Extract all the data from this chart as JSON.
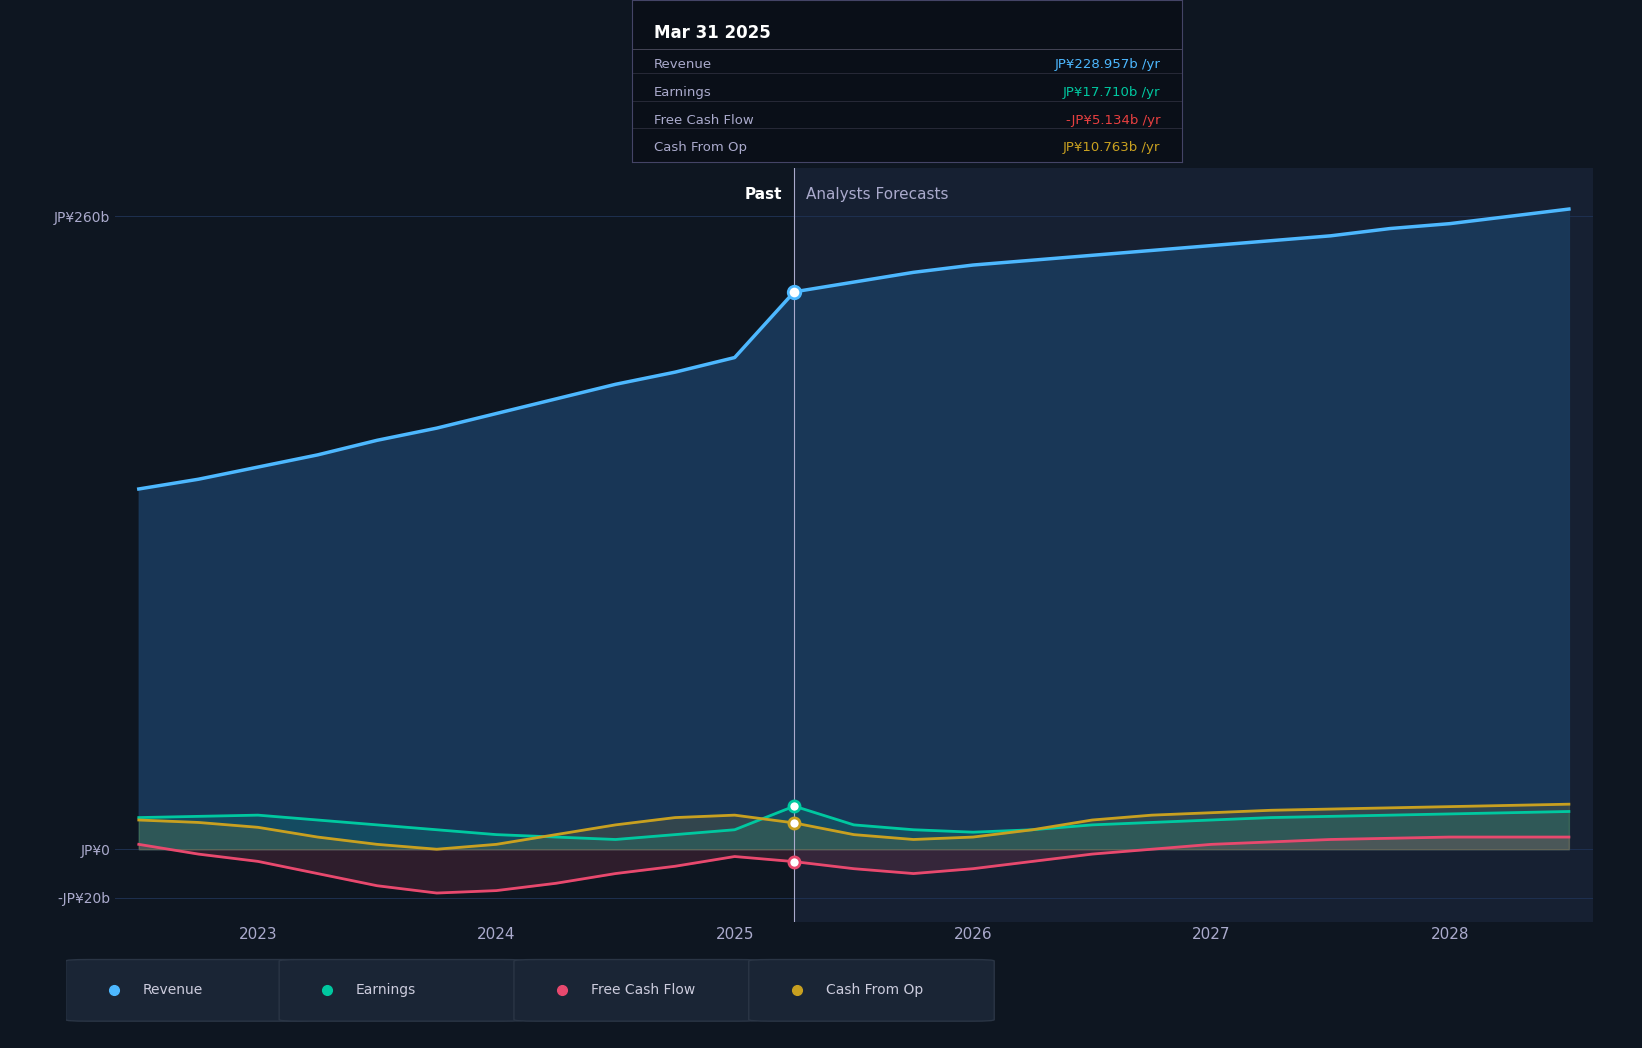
{
  "bg_color": "#0e1621",
  "plot_bg_color": "#162032",
  "left_panel_color": "#0e1621",
  "grid_color": "#1e3050",
  "divider_x": 2025.25,
  "xlim": [
    2022.4,
    2028.6
  ],
  "ylim": [
    -30,
    280
  ],
  "yticks": [
    -20,
    0,
    260
  ],
  "ytick_labels": [
    "-JP¥20b",
    "JP¥0",
    "JP¥260b"
  ],
  "xticks": [
    2023,
    2024,
    2025,
    2026,
    2027,
    2028
  ],
  "past_label": "Past",
  "forecast_label": "Analysts Forecasts",
  "revenue_color": "#4db8ff",
  "revenue_fill": "#1a3a5c",
  "earnings_color": "#00c8a0",
  "fcf_color": "#e8496e",
  "cashop_color": "#c8a020",
  "tooltip_bg": "#0a0f18",
  "tooltip_border": "#333344",
  "revenue_data_x": [
    2022.5,
    2022.75,
    2023.0,
    2023.25,
    2023.5,
    2023.75,
    2024.0,
    2024.25,
    2024.5,
    2024.75,
    2025.0,
    2025.25,
    2025.5,
    2025.75,
    2026.0,
    2026.25,
    2026.5,
    2026.75,
    2027.0,
    2027.25,
    2027.5,
    2027.75,
    2028.0,
    2028.25,
    2028.5
  ],
  "revenue_data_y": [
    148,
    152,
    157,
    162,
    168,
    173,
    179,
    185,
    191,
    196,
    202,
    229,
    233,
    237,
    240,
    242,
    244,
    246,
    248,
    250,
    252,
    255,
    257,
    260,
    263
  ],
  "earnings_data_x": [
    2022.5,
    2022.75,
    2023.0,
    2023.25,
    2023.5,
    2023.75,
    2024.0,
    2024.25,
    2024.5,
    2024.75,
    2025.0,
    2025.25,
    2025.5,
    2025.75,
    2026.0,
    2026.25,
    2026.5,
    2026.75,
    2027.0,
    2027.25,
    2027.5,
    2027.75,
    2028.0,
    2028.25,
    2028.5
  ],
  "earnings_data_y": [
    13,
    13.5,
    14,
    12,
    10,
    8,
    6,
    5,
    4,
    6,
    8,
    17.7,
    10,
    8,
    7,
    8,
    10,
    11,
    12,
    13,
    13.5,
    14,
    14.5,
    15,
    15.5
  ],
  "fcf_data_x": [
    2022.5,
    2022.75,
    2023.0,
    2023.25,
    2023.5,
    2023.75,
    2024.0,
    2024.25,
    2024.5,
    2024.75,
    2025.0,
    2025.25,
    2025.5,
    2025.75,
    2026.0,
    2026.25,
    2026.5,
    2026.75,
    2027.0,
    2027.25,
    2027.5,
    2027.75,
    2028.0,
    2028.25,
    2028.5
  ],
  "fcf_data_y": [
    2,
    -2,
    -5,
    -10,
    -15,
    -18,
    -17,
    -14,
    -10,
    -7,
    -3,
    -5.1,
    -8,
    -10,
    -8,
    -5,
    -2,
    0,
    2,
    3,
    4,
    4.5,
    5,
    5,
    5
  ],
  "cashop_data_x": [
    2022.5,
    2022.75,
    2023.0,
    2023.25,
    2023.5,
    2023.75,
    2024.0,
    2024.25,
    2024.5,
    2024.75,
    2025.0,
    2025.25,
    2025.5,
    2025.75,
    2026.0,
    2026.25,
    2026.5,
    2026.75,
    2027.0,
    2027.25,
    2027.5,
    2027.75,
    2028.0,
    2028.25,
    2028.5
  ],
  "cashop_data_y": [
    12,
    11,
    9,
    5,
    2,
    0,
    2,
    6,
    10,
    13,
    14,
    10.8,
    6,
    4,
    5,
    8,
    12,
    14,
    15,
    16,
    16.5,
    17,
    17.5,
    18,
    18.5
  ],
  "marker_x": 2025.25,
  "legend_items": [
    {
      "label": "Revenue",
      "color": "#4db8ff"
    },
    {
      "label": "Earnings",
      "color": "#00c8a0"
    },
    {
      "label": "Free Cash Flow",
      "color": "#e8496e"
    },
    {
      "label": "Cash From Op",
      "color": "#c8a020"
    }
  ],
  "tooltip": {
    "title": "Mar 31 2025",
    "rows": [
      {
        "label": "Revenue",
        "value": "JP¥228.957b /yr",
        "color": "#4db8ff"
      },
      {
        "label": "Earnings",
        "value": "JP¥17.710b /yr",
        "color": "#00c8a0"
      },
      {
        "label": "Free Cash Flow",
        "value": "-JP¥5.134b /yr",
        "color": "#e84040"
      },
      {
        "label": "Cash From Op",
        "value": "JP¥10.763b /yr",
        "color": "#c8a020"
      }
    ]
  }
}
